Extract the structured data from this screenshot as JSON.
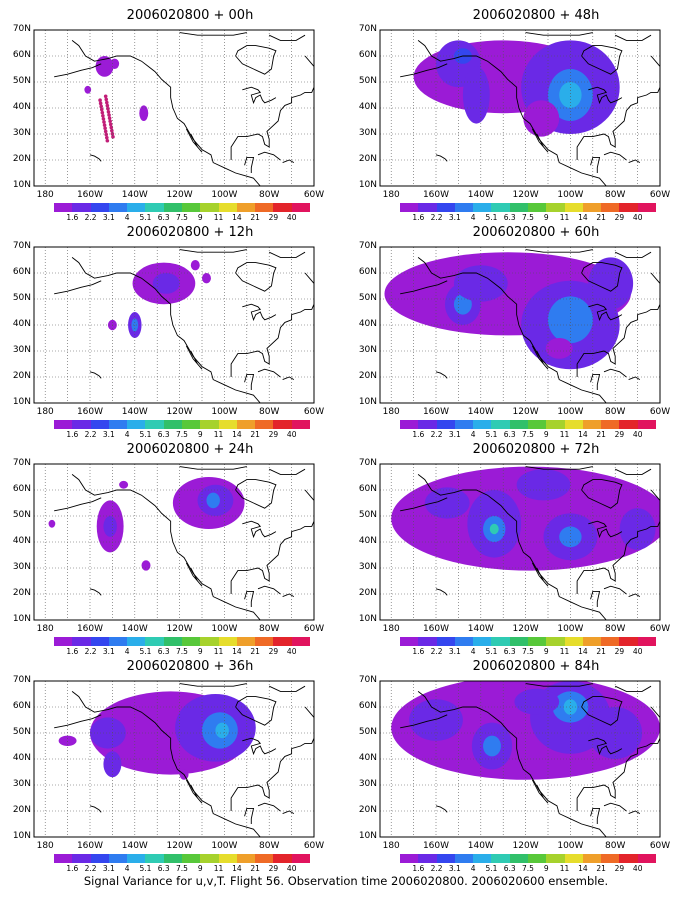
{
  "panels": [
    {
      "title": "2006020800 + 00h",
      "lead": "00h"
    },
    {
      "title": "2006020800 + 48h",
      "lead": "48h"
    },
    {
      "title": "2006020800 + 12h",
      "lead": "12h"
    },
    {
      "title": "2006020800 + 60h",
      "lead": "60h"
    },
    {
      "title": "2006020800 + 24h",
      "lead": "24h"
    },
    {
      "title": "2006020800 + 72h",
      "lead": "72h"
    },
    {
      "title": "2006020800 + 36h",
      "lead": "36h"
    },
    {
      "title": "2006020800 + 84h",
      "lead": "84h"
    }
  ],
  "lat_labels": [
    "70N",
    "60N",
    "50N",
    "40N",
    "30N",
    "20N",
    "10N"
  ],
  "lon_labels": [
    "180",
    "160W",
    "140W",
    "120W",
    "100W",
    "80W",
    "60W"
  ],
  "colorbar": {
    "ticks": [
      "1.6",
      "2.2",
      "3.1",
      "4",
      "5.1",
      "6.3",
      "7.5",
      "9",
      "11",
      "14",
      "21",
      "29",
      "40"
    ],
    "colors": [
      "#9b1bd6",
      "#6a29e6",
      "#3446ef",
      "#2f7cf0",
      "#2aaeea",
      "#2fcbb3",
      "#31c06a",
      "#58c83a",
      "#a6d22c",
      "#e6dd2c",
      "#ef9f2a",
      "#ef6a26",
      "#e3242b",
      "#e1145e"
    ]
  },
  "caption": "Signal Variance for u,v,T. Flight 56. Observation time 2006020800. 2006020600 ensemble."
}
